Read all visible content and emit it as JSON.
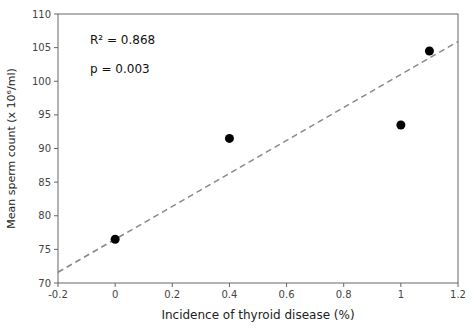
{
  "chart_data": {
    "type": "scatter",
    "x": [
      0.0,
      0.4,
      1.0,
      1.1
    ],
    "values": [
      76.5,
      91.5,
      93.5,
      104.5
    ],
    "color": "#000000",
    "trendline": {
      "x": [
        -0.2,
        1.2
      ],
      "values": [
        71.6,
        105.9
      ],
      "color": "#888888",
      "line_style": "dashed"
    },
    "xlim": [
      -0.2,
      1.2
    ],
    "ylim": [
      70,
      110
    ],
    "xticks": [
      -0.2,
      0,
      0.2,
      0.4,
      0.6,
      0.8,
      1.0,
      1.2
    ],
    "yticks": [
      70,
      75,
      80,
      85,
      90,
      95,
      100,
      105,
      110
    ],
    "xlabel": "Incidence of thyroid disease (%)",
    "ylabel": "Mean sperm count (x 10⁶/ml)",
    "annotations": [
      "R² = 0.868",
      "p = 0.003"
    ],
    "grid": false
  }
}
